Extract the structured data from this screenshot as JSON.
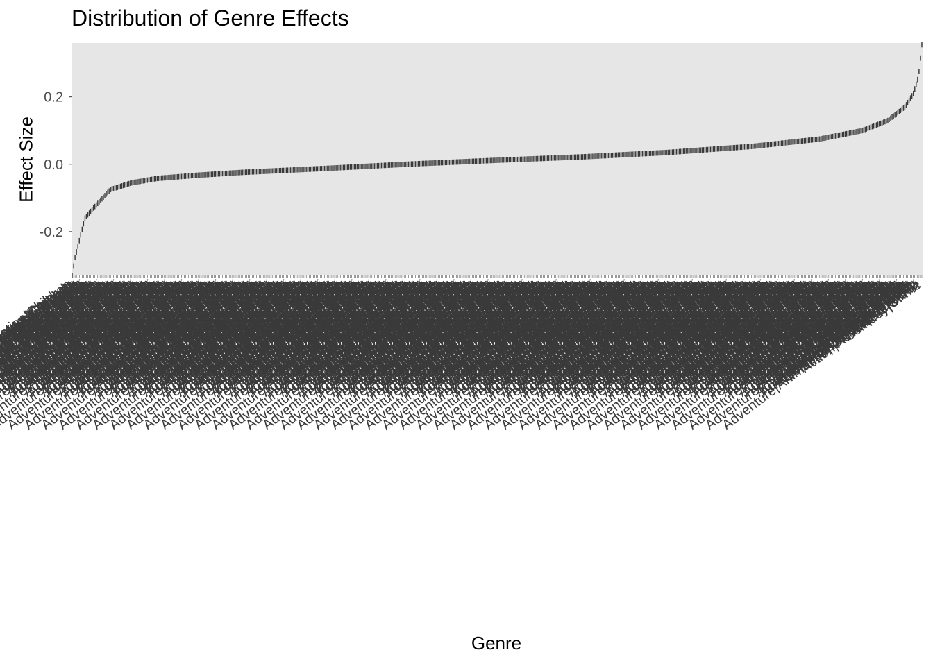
{
  "chart_data": {
    "type": "bar",
    "title": "Distribution of Genre Effects",
    "xlabel": "Genre",
    "ylabel": "Effect Size",
    "ylim": [
      -0.33,
      0.36
    ],
    "yticks": [
      -0.2,
      0.0,
      0.2
    ],
    "ytick_labels": [
      "-0.2",
      "0.0",
      "0.2"
    ],
    "grid": false,
    "legend": "none",
    "bar_color": "#3a3a3a",
    "panel_color": "#e6e6e6",
    "tick_label_color": "#3a3a3a",
    "category_count": 600,
    "categories": [
      "Adventure|Animation|Children",
      "Action|Adventure|Comedy",
      "Action|Adventure|Children",
      "Adventure|Animation|Comedy",
      "Adventure|Children|Fantasy",
      "Action|Adventure|Animation",
      "Comedy|Drama|Romance",
      "Action|Crime|Thriller",
      "Adventure|Animation|Children|Comedy",
      "Drama|Romance",
      "Action|Adventure|Sci-Fi",
      "Comedy|Crime"
    ],
    "sorted_effect_anchors": [
      [
        0.0,
        -0.33
      ],
      [
        0.003,
        -0.28
      ],
      [
        0.008,
        -0.23
      ],
      [
        0.015,
        -0.16
      ],
      [
        0.025,
        -0.13
      ],
      [
        0.045,
        -0.075
      ],
      [
        0.07,
        -0.055
      ],
      [
        0.1,
        -0.042
      ],
      [
        0.15,
        -0.032
      ],
      [
        0.2,
        -0.024
      ],
      [
        0.3,
        -0.012
      ],
      [
        0.4,
        0.001
      ],
      [
        0.5,
        0.012
      ],
      [
        0.6,
        0.022
      ],
      [
        0.7,
        0.035
      ],
      [
        0.8,
        0.053
      ],
      [
        0.88,
        0.075
      ],
      [
        0.93,
        0.1
      ],
      [
        0.96,
        0.13
      ],
      [
        0.98,
        0.17
      ],
      [
        0.99,
        0.21
      ],
      [
        0.996,
        0.26
      ],
      [
        1.0,
        0.355
      ]
    ]
  }
}
